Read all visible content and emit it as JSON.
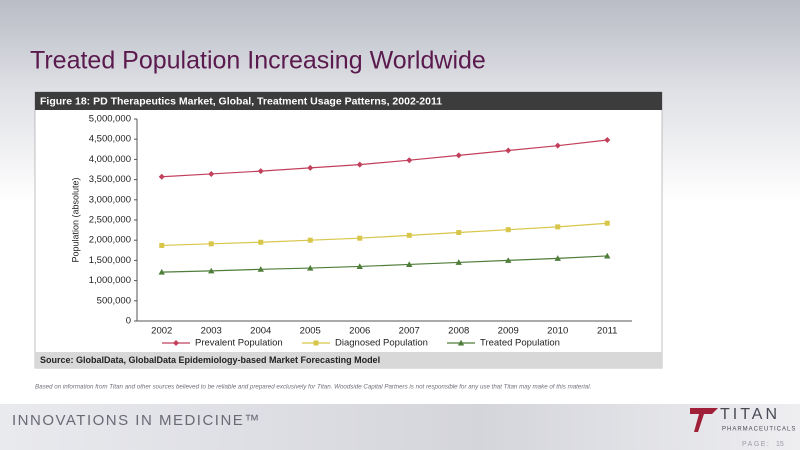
{
  "slide_title": "Treated Population Increasing Worldwide",
  "chart_data": {
    "type": "line",
    "title": "Figure 18:   PD Therapeutics Market, Global, Treatment Usage Patterns, 2002-2011",
    "ylabel": "Population (absolute)",
    "categories": [
      "2002",
      "2003",
      "2004",
      "2005",
      "2006",
      "2007",
      "2008",
      "2009",
      "2010",
      "2011"
    ],
    "series": [
      {
        "name": "Prevalent Population",
        "color": "#c2405c",
        "marker": "diamond",
        "values": [
          3570000,
          3640000,
          3710000,
          3790000,
          3870000,
          3980000,
          4100000,
          4220000,
          4340000,
          4480000
        ]
      },
      {
        "name": "Diagnosed Population",
        "color": "#d8c64a",
        "marker": "square",
        "values": [
          1870000,
          1910000,
          1950000,
          2000000,
          2050000,
          2120000,
          2190000,
          2260000,
          2330000,
          2420000
        ]
      },
      {
        "name": "Treated Population",
        "color": "#4f7d3a",
        "marker": "triangle",
        "values": [
          1210000,
          1240000,
          1280000,
          1310000,
          1350000,
          1400000,
          1450000,
          1500000,
          1550000,
          1610000
        ]
      }
    ],
    "ylim": [
      0,
      5000000
    ],
    "yticks": [
      0,
      {
        "value": 500000,
        "label": "500,000"
      },
      {
        "value": 1000000,
        "label": "1,000,000"
      },
      {
        "value": 1500000,
        "label": "1,500,000"
      },
      {
        "value": 2000000,
        "label": "2,000,000"
      },
      {
        "value": 2500000,
        "label": "2,500,000"
      },
      {
        "value": 3000000,
        "label": "3,000,000"
      },
      {
        "value": 3500000,
        "label": "3,500,000"
      },
      {
        "value": 4000000,
        "label": "4,000,000"
      },
      {
        "value": 4500000,
        "label": "4,500,000"
      },
      {
        "value": 5000000,
        "label": "5,000,000"
      }
    ],
    "grid": false,
    "legend": "bottom",
    "source": "Source: GlobalData, GlobalData Epidemiology-based Market Forecasting Model"
  },
  "disclaimer": "Based on information from Titan and other sources believed to be reliable and prepared exclusively for Titan. Woodside Capital Partners is not responsible for any use that Titan may make of this material.",
  "footer": {
    "tagline": "INNOVATIONS IN MEDICINE™",
    "logo": "TITAN",
    "logo_sub": "PHARMACEUTICALS",
    "page_label": "PAGE:",
    "page_number": "15"
  }
}
